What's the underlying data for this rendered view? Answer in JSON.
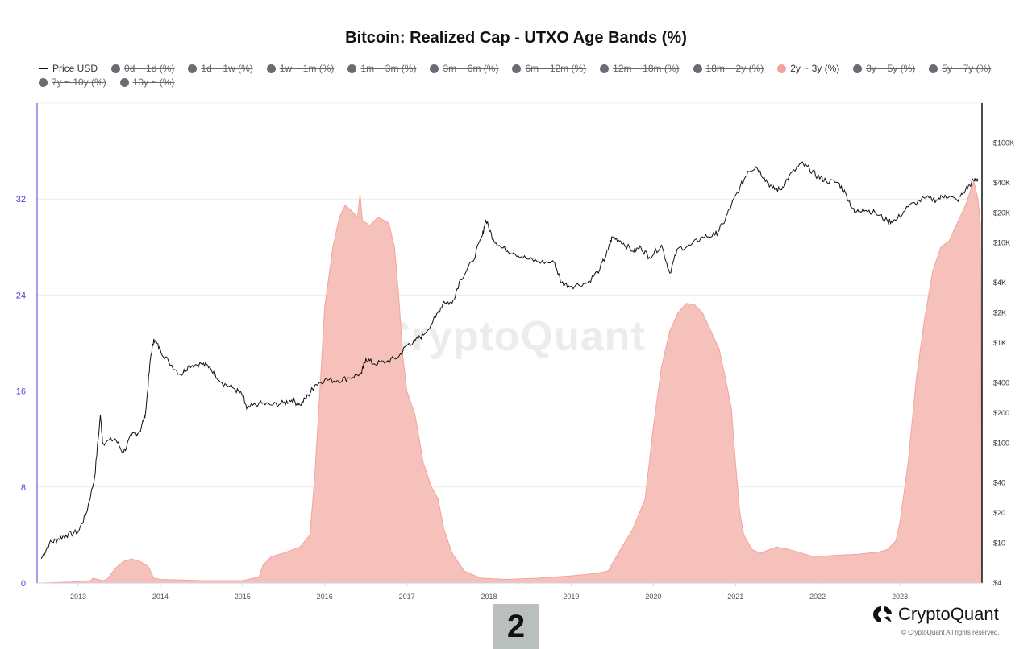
{
  "chart_data": {
    "type": "area",
    "title": "Bitcoin: Realized Cap - UTXO Age Bands (%)",
    "legend": [
      {
        "label": "Price USD",
        "enabled": true,
        "kind": "line",
        "color": "#111111"
      },
      {
        "label": "0d ~ 1d (%)",
        "enabled": false,
        "kind": "dot"
      },
      {
        "label": "1d ~ 1w (%)",
        "enabled": false,
        "kind": "dot"
      },
      {
        "label": "1w ~ 1m (%)",
        "enabled": false,
        "kind": "dot"
      },
      {
        "label": "1m ~ 3m (%)",
        "enabled": false,
        "kind": "dot"
      },
      {
        "label": "3m ~ 6m (%)",
        "enabled": false,
        "kind": "dot"
      },
      {
        "label": "6m ~ 12m (%)",
        "enabled": false,
        "kind": "dot"
      },
      {
        "label": "12m ~ 18m (%)",
        "enabled": false,
        "kind": "dot"
      },
      {
        "label": "18m ~ 2y (%)",
        "enabled": false,
        "kind": "dot"
      },
      {
        "label": "2y ~ 3y (%)",
        "enabled": true,
        "kind": "dot",
        "color": "#f2a49d"
      },
      {
        "label": "3y ~ 5y (%)",
        "enabled": false,
        "kind": "dot"
      },
      {
        "label": "5y ~ 7y (%)",
        "enabled": false,
        "kind": "dot"
      },
      {
        "label": "7y ~ 10y (%)",
        "enabled": false,
        "kind": "dot"
      },
      {
        "label": "10y ~ (%)",
        "enabled": false,
        "kind": "dot"
      }
    ],
    "x_ticks": [
      "2013",
      "2014",
      "2015",
      "2016",
      "2017",
      "2018",
      "2019",
      "2020",
      "2021",
      "2022",
      "2023"
    ],
    "x_range": [
      2012.5,
      2024.0
    ],
    "y_left": {
      "ticks": [
        "0",
        "8",
        "16",
        "24",
        "32"
      ],
      "range": [
        0,
        40
      ],
      "color": "#4a3fd6"
    },
    "y_right": {
      "scale": "log",
      "ticks": [
        "$4",
        "$10",
        "$20",
        "$40",
        "$100",
        "$200",
        "$400",
        "$1K",
        "$2K",
        "$4K",
        "$10K",
        "$20K",
        "$40K",
        "$100K"
      ],
      "tick_values": [
        4,
        10,
        20,
        40,
        100,
        200,
        400,
        1000,
        2000,
        4000,
        10000,
        20000,
        40000,
        100000
      ],
      "range": [
        4,
        250000
      ]
    },
    "grid": true,
    "series": [
      {
        "name": "2y ~ 3y (%)",
        "axis": "left",
        "kind": "area",
        "color": "#f2a49d",
        "fill": "#f6c0bb",
        "points": [
          [
            2012.55,
            0.0
          ],
          [
            2013.0,
            0.1
          ],
          [
            2013.15,
            0.2
          ],
          [
            2013.18,
            0.4
          ],
          [
            2013.3,
            0.2
          ],
          [
            2013.35,
            0.3
          ],
          [
            2013.45,
            1.2
          ],
          [
            2013.55,
            1.8
          ],
          [
            2013.65,
            2.0
          ],
          [
            2013.75,
            1.8
          ],
          [
            2013.85,
            1.4
          ],
          [
            2013.92,
            0.4
          ],
          [
            2014.0,
            0.3
          ],
          [
            2014.5,
            0.2
          ],
          [
            2015.0,
            0.2
          ],
          [
            2015.2,
            0.5
          ],
          [
            2015.25,
            1.5
          ],
          [
            2015.35,
            2.2
          ],
          [
            2015.5,
            2.5
          ],
          [
            2015.7,
            3.0
          ],
          [
            2015.82,
            4.0
          ],
          [
            2015.88,
            9.0
          ],
          [
            2015.95,
            17.0
          ],
          [
            2016.0,
            23.0
          ],
          [
            2016.05,
            25.5
          ],
          [
            2016.1,
            28.0
          ],
          [
            2016.18,
            30.5
          ],
          [
            2016.25,
            31.5
          ],
          [
            2016.33,
            31.0
          ],
          [
            2016.4,
            30.5
          ],
          [
            2016.43,
            32.4
          ],
          [
            2016.46,
            30.2
          ],
          [
            2016.55,
            29.8
          ],
          [
            2016.65,
            30.5
          ],
          [
            2016.78,
            30.0
          ],
          [
            2016.85,
            28.0
          ],
          [
            2016.9,
            24.0
          ],
          [
            2016.95,
            19.0
          ],
          [
            2017.0,
            16.0
          ],
          [
            2017.1,
            14.0
          ],
          [
            2017.2,
            10.0
          ],
          [
            2017.3,
            8.0
          ],
          [
            2017.38,
            7.0
          ],
          [
            2017.45,
            4.5
          ],
          [
            2017.55,
            2.5
          ],
          [
            2017.7,
            1.0
          ],
          [
            2017.9,
            0.4
          ],
          [
            2018.2,
            0.3
          ],
          [
            2018.6,
            0.4
          ],
          [
            2019.0,
            0.6
          ],
          [
            2019.3,
            0.8
          ],
          [
            2019.45,
            1.0
          ],
          [
            2019.6,
            2.8
          ],
          [
            2019.75,
            4.5
          ],
          [
            2019.9,
            7.0
          ],
          [
            2020.0,
            13.0
          ],
          [
            2020.1,
            18.0
          ],
          [
            2020.2,
            21.0
          ],
          [
            2020.3,
            22.5
          ],
          [
            2020.4,
            23.3
          ],
          [
            2020.5,
            23.2
          ],
          [
            2020.6,
            22.5
          ],
          [
            2020.7,
            21.0
          ],
          [
            2020.8,
            19.5
          ],
          [
            2020.88,
            17.0
          ],
          [
            2020.95,
            14.5
          ],
          [
            2021.0,
            10.0
          ],
          [
            2021.05,
            6.0
          ],
          [
            2021.1,
            4.0
          ],
          [
            2021.2,
            2.8
          ],
          [
            2021.3,
            2.5
          ],
          [
            2021.5,
            3.0
          ],
          [
            2021.65,
            2.8
          ],
          [
            2021.8,
            2.5
          ],
          [
            2021.95,
            2.2
          ],
          [
            2022.2,
            2.3
          ],
          [
            2022.5,
            2.4
          ],
          [
            2022.75,
            2.6
          ],
          [
            2022.85,
            2.8
          ],
          [
            2022.95,
            3.5
          ],
          [
            2023.0,
            5.0
          ],
          [
            2023.1,
            10.0
          ],
          [
            2023.2,
            17.0
          ],
          [
            2023.3,
            22.0
          ],
          [
            2023.4,
            26.0
          ],
          [
            2023.5,
            28.0
          ],
          [
            2023.6,
            28.5
          ],
          [
            2023.7,
            30.0
          ],
          [
            2023.8,
            31.5
          ],
          [
            2023.9,
            33.5
          ],
          [
            2023.95,
            32.0
          ],
          [
            2023.98,
            30.0
          ],
          [
            2024.0,
            0.0
          ]
        ]
      },
      {
        "name": "Price USD",
        "axis": "right",
        "kind": "line",
        "color": "#111111",
        "points": [
          [
            2012.55,
            7
          ],
          [
            2012.65,
            10
          ],
          [
            2012.75,
            11
          ],
          [
            2012.85,
            12
          ],
          [
            2013.0,
            13
          ],
          [
            2013.1,
            20
          ],
          [
            2013.2,
            45
          ],
          [
            2013.27,
            190
          ],
          [
            2013.3,
            100
          ],
          [
            2013.45,
            110
          ],
          [
            2013.55,
            80
          ],
          [
            2013.65,
            120
          ],
          [
            2013.75,
            130
          ],
          [
            2013.82,
            200
          ],
          [
            2013.88,
            700
          ],
          [
            2013.92,
            1100
          ],
          [
            2014.0,
            850
          ],
          [
            2014.1,
            650
          ],
          [
            2014.25,
            480
          ],
          [
            2014.35,
            600
          ],
          [
            2014.5,
            620
          ],
          [
            2014.6,
            580
          ],
          [
            2014.75,
            400
          ],
          [
            2014.9,
            350
          ],
          [
            2015.0,
            300
          ],
          [
            2015.05,
            220
          ],
          [
            2015.2,
            250
          ],
          [
            2015.35,
            240
          ],
          [
            2015.5,
            250
          ],
          [
            2015.6,
            270
          ],
          [
            2015.7,
            240
          ],
          [
            2015.8,
            300
          ],
          [
            2015.88,
            380
          ],
          [
            2016.0,
            430
          ],
          [
            2016.15,
            420
          ],
          [
            2016.3,
            450
          ],
          [
            2016.45,
            500
          ],
          [
            2016.5,
            700
          ],
          [
            2016.6,
            620
          ],
          [
            2016.75,
            650
          ],
          [
            2016.9,
            730
          ],
          [
            2017.0,
            950
          ],
          [
            2017.1,
            1050
          ],
          [
            2017.2,
            1200
          ],
          [
            2017.35,
            1800
          ],
          [
            2017.45,
            2600
          ],
          [
            2017.55,
            2500
          ],
          [
            2017.65,
            4300
          ],
          [
            2017.8,
            6500
          ],
          [
            2017.92,
            12000
          ],
          [
            2017.96,
            17000
          ],
          [
            2018.05,
            11000
          ],
          [
            2018.15,
            9000
          ],
          [
            2018.3,
            8000
          ],
          [
            2018.45,
            7000
          ],
          [
            2018.6,
            6500
          ],
          [
            2018.8,
            6300
          ],
          [
            2018.88,
            4000
          ],
          [
            2019.0,
            3700
          ],
          [
            2019.2,
            4000
          ],
          [
            2019.35,
            5500
          ],
          [
            2019.45,
            8500
          ],
          [
            2019.5,
            11500
          ],
          [
            2019.6,
            10500
          ],
          [
            2019.75,
            8300
          ],
          [
            2019.85,
            9000
          ],
          [
            2019.95,
            7200
          ],
          [
            2020.1,
            9500
          ],
          [
            2020.2,
            5000
          ],
          [
            2020.3,
            8800
          ],
          [
            2020.45,
            9400
          ],
          [
            2020.6,
            11500
          ],
          [
            2020.75,
            12000
          ],
          [
            2020.85,
            15500
          ],
          [
            2020.95,
            24000
          ],
          [
            2021.05,
            35000
          ],
          [
            2021.15,
            52000
          ],
          [
            2021.25,
            58000
          ],
          [
            2021.35,
            45000
          ],
          [
            2021.45,
            35000
          ],
          [
            2021.55,
            34000
          ],
          [
            2021.65,
            46000
          ],
          [
            2021.8,
            62000
          ],
          [
            2021.9,
            55000
          ],
          [
            2022.0,
            46000
          ],
          [
            2022.1,
            42000
          ],
          [
            2022.25,
            40000
          ],
          [
            2022.35,
            30000
          ],
          [
            2022.45,
            20000
          ],
          [
            2022.55,
            22000
          ],
          [
            2022.7,
            20000
          ],
          [
            2022.85,
            16500
          ],
          [
            2022.95,
            16800
          ],
          [
            2023.1,
            23000
          ],
          [
            2023.3,
            28000
          ],
          [
            2023.45,
            27000
          ],
          [
            2023.55,
            30000
          ],
          [
            2023.7,
            26500
          ],
          [
            2023.8,
            34000
          ],
          [
            2023.9,
            42000
          ],
          [
            2023.95,
            44000
          ]
        ]
      }
    ]
  },
  "watermark": "CryptoQuant",
  "brand": {
    "name": "CryptoQuant",
    "copyright": "© CryptoQuant All rights reserved."
  },
  "page_badge": "2"
}
